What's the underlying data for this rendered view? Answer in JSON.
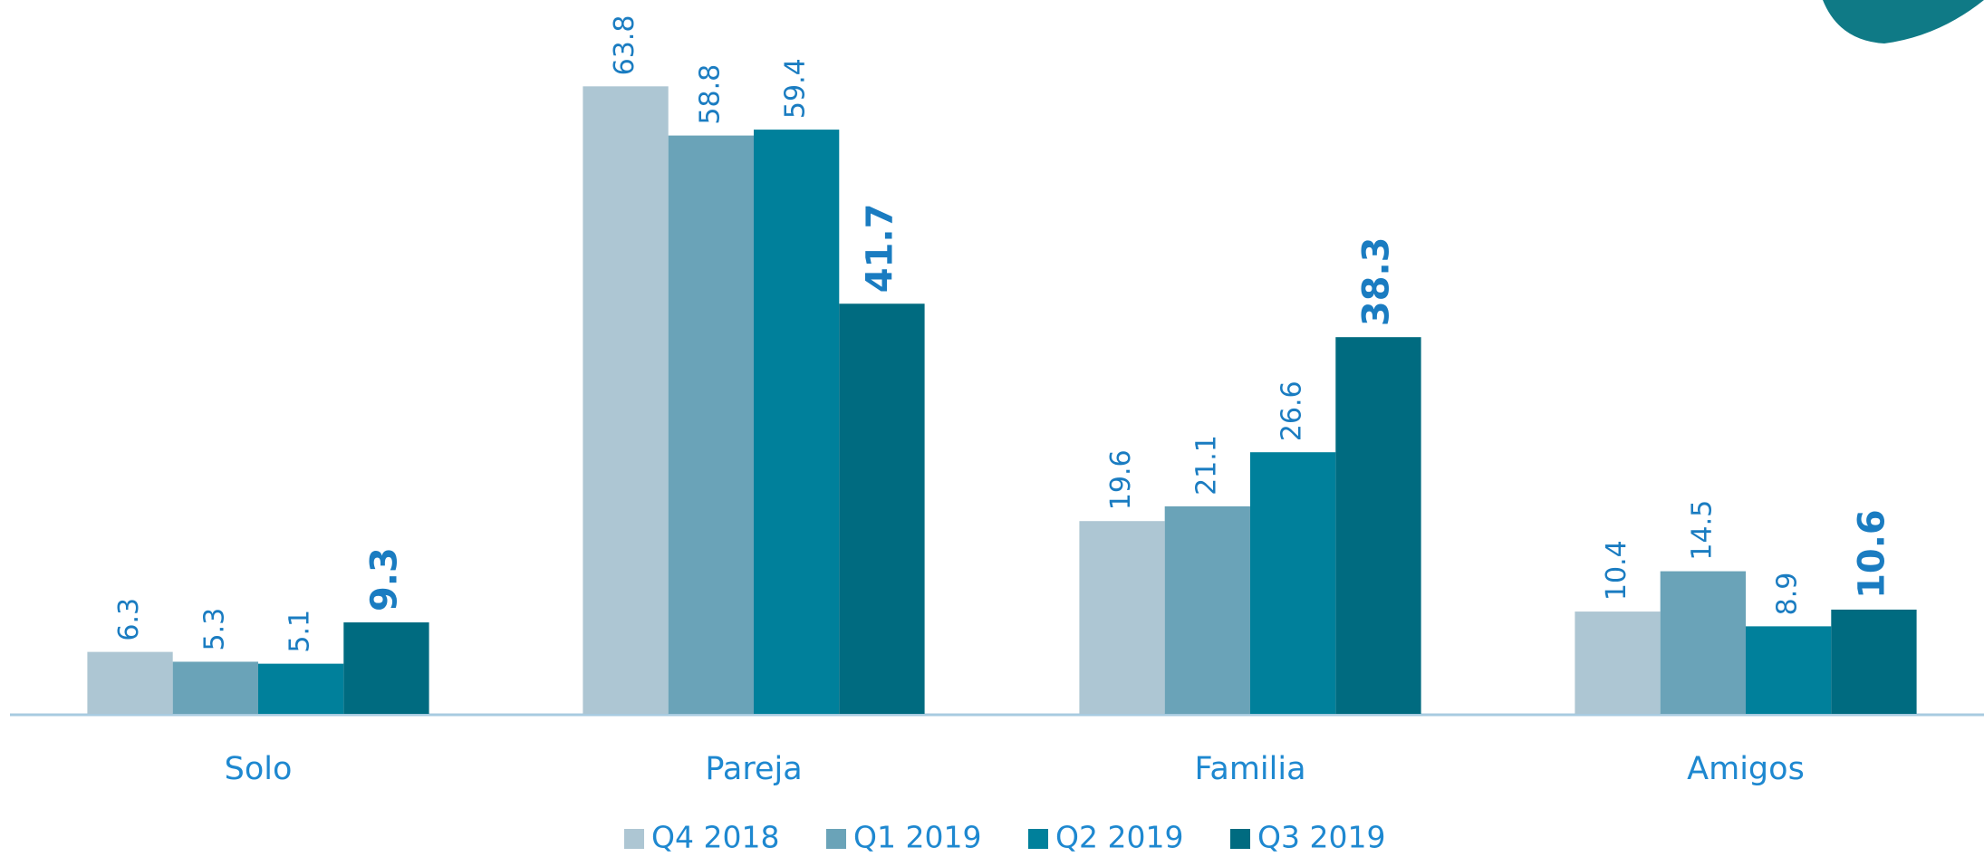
{
  "chart_data": {
    "type": "bar",
    "categories": [
      "Solo",
      "Pareja",
      "Familia",
      "Amigos"
    ],
    "series": [
      {
        "name": "Q4 2018",
        "color": "#adc6d3",
        "values": [
          6.3,
          63.8,
          19.6,
          10.4
        ]
      },
      {
        "name": "Q1 2019",
        "color": "#6aa3b8",
        "values": [
          5.3,
          58.8,
          21.1,
          14.5
        ]
      },
      {
        "name": "Q2 2019",
        "color": "#00809b",
        "values": [
          5.1,
          59.4,
          26.6,
          8.9
        ]
      },
      {
        "name": "Q3 2019",
        "color": "#006b80",
        "values": [
          9.3,
          41.7,
          38.3,
          10.6
        ],
        "bold": true
      }
    ],
    "ylim": [
      0,
      70
    ],
    "legend": "bottom"
  }
}
